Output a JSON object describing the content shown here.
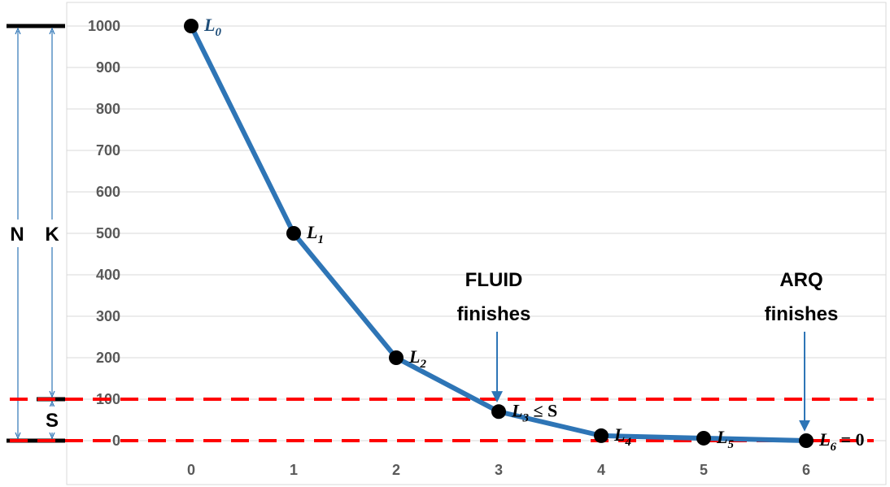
{
  "chart_data": {
    "type": "line",
    "x": [
      0,
      1,
      2,
      3,
      4,
      5,
      6
    ],
    "y": [
      1000,
      500,
      200,
      70,
      12,
      6,
      0
    ],
    "xticks": [
      "0",
      "1",
      "2",
      "3",
      "4",
      "5",
      "6"
    ],
    "yticks": [
      "0",
      "100",
      "200",
      "300",
      "400",
      "500",
      "600",
      "700",
      "800",
      "900",
      "1000"
    ],
    "ylim": [
      0,
      1000
    ],
    "grid": true,
    "line_color": "#2e75b6",
    "marker_color": "#000000",
    "point_labels": [
      {
        "base": "L",
        "sub": "0",
        "suffix": "",
        "color": "#1f4e79"
      },
      {
        "base": "L",
        "sub": "1",
        "suffix": "",
        "color": "#000000"
      },
      {
        "base": "L",
        "sub": "2",
        "suffix": "",
        "color": "#000000"
      },
      {
        "base": "L",
        "sub": "3",
        "suffix": " ≤ S",
        "color": "#000000"
      },
      {
        "base": "L",
        "sub": "4",
        "suffix": "",
        "color": "#000000"
      },
      {
        "base": "L",
        "sub": "5",
        "suffix": "",
        "color": "#000000"
      },
      {
        "base": "L",
        "sub": "6",
        "suffix": " = 0",
        "color": "#000000"
      }
    ],
    "reference_lines": [
      {
        "y": 100,
        "color": "#ff0000",
        "style": "dashed"
      },
      {
        "y": 0,
        "color": "#ff0000",
        "style": "dashed"
      }
    ],
    "annotations": [
      {
        "lines": [
          "FLUID",
          "finishes"
        ],
        "x": 3
      },
      {
        "lines": [
          "ARQ",
          "finishes"
        ],
        "x": 6
      }
    ],
    "side_labels": {
      "n": "N",
      "k": "K",
      "s": "S"
    },
    "accent_color": "#2e75b6"
  }
}
